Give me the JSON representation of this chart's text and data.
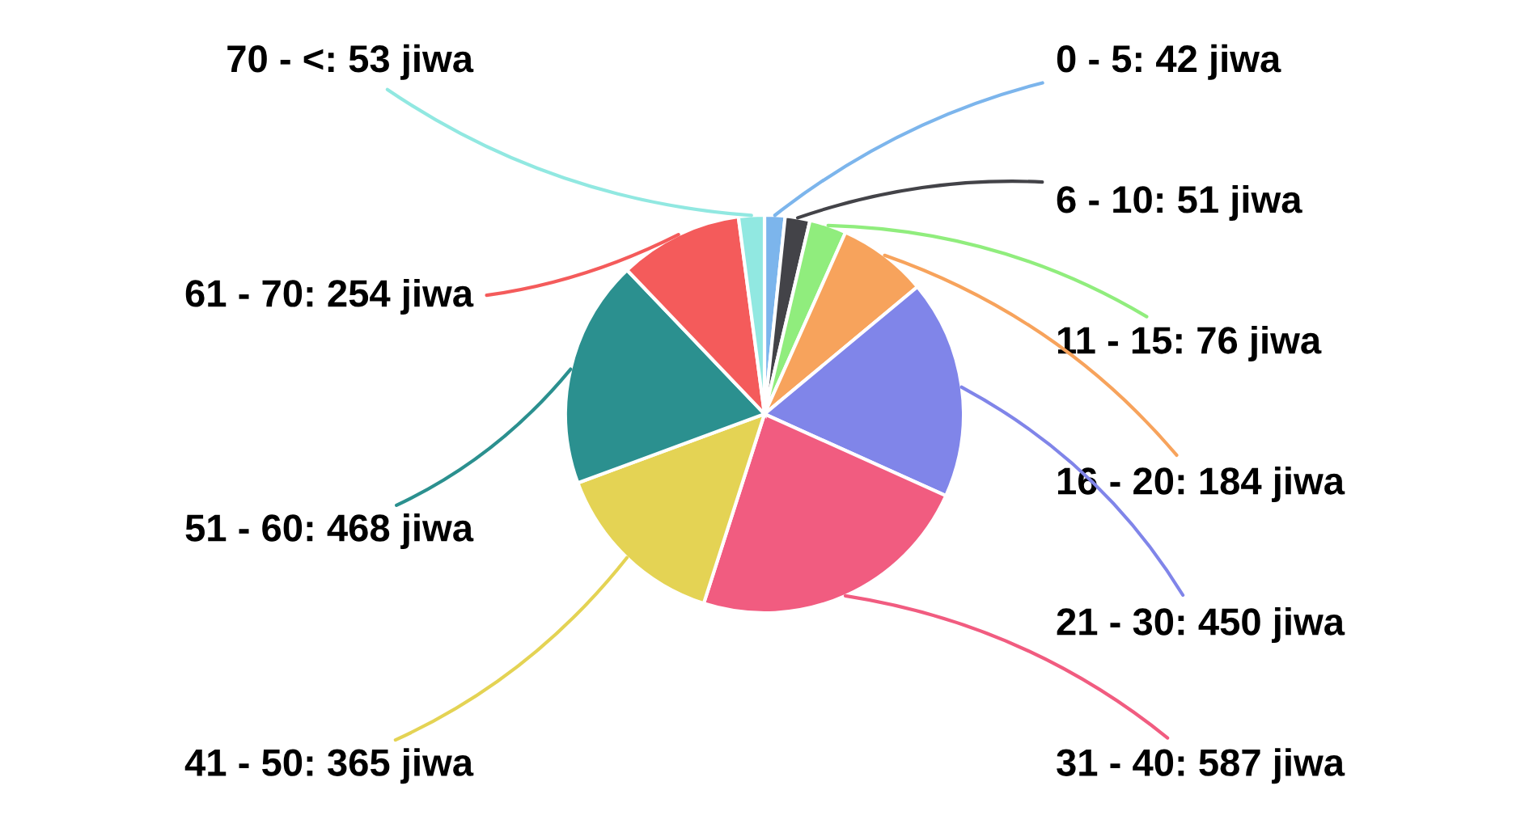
{
  "chart_data": {
    "type": "pie",
    "categories": [
      "0 - 5",
      "6 - 10",
      "11 - 15",
      "16 - 20",
      "21 - 30",
      "31 - 40",
      "41 - 50",
      "51 - 60",
      "61 - 70",
      "70 - <"
    ],
    "values": [
      42,
      51,
      76,
      184,
      450,
      587,
      365,
      468,
      254,
      53
    ],
    "value_labels": [
      "42 jiwa",
      "51 jiwa",
      "76 jiwa",
      "184 jiwa",
      "450 jiwa",
      "587 jiwa",
      "365 jiwa",
      "468 jiwa",
      "254 jiwa",
      "53 jiwa"
    ],
    "colors": [
      "#7cb5ec",
      "#434348",
      "#90ed7d",
      "#f7a35c",
      "#8085e9",
      "#f15c80",
      "#e4d354",
      "#2b908f",
      "#f45b5b",
      "#91e8e1"
    ],
    "legend": false
  }
}
